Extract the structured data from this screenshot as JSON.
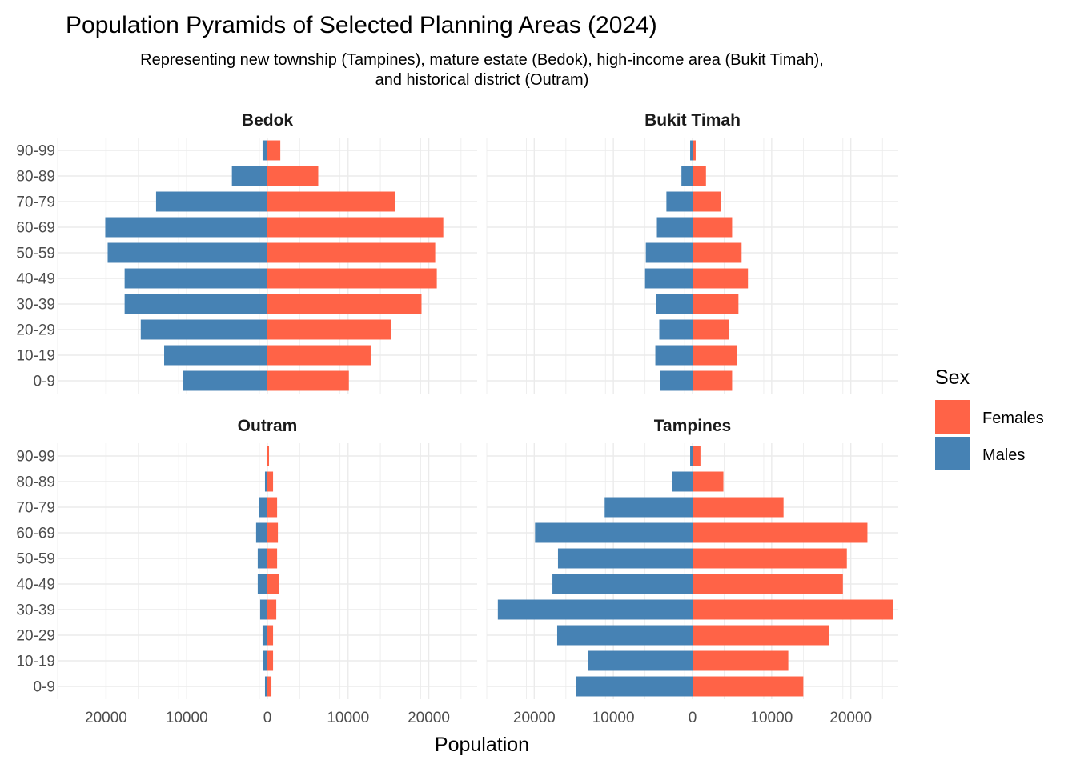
{
  "chart_data": {
    "type": "bar",
    "orientation": "horizontal",
    "layout": "population-pyramid-facets",
    "title": "Population Pyramids of Selected Planning Areas (2024)",
    "subtitle_lines": [
      "Representing new township (Tampines), mature estate (Bedok), high-income area (Bukit Timah),",
      "and historical district (Outram)"
    ],
    "xlabel": "Population",
    "ylabel": "",
    "xlim": [
      -26000,
      26000
    ],
    "x_ticks": [
      -20000,
      -10000,
      0,
      10000,
      20000
    ],
    "x_tick_labels": [
      "20000",
      "10000",
      "0",
      "10000",
      "20000"
    ],
    "categories": [
      "0-9",
      "10-19",
      "20-29",
      "30-39",
      "40-49",
      "50-59",
      "60-69",
      "70-79",
      "80-89",
      "90-99"
    ],
    "grid": true,
    "legend": {
      "title": "Sex",
      "position": "right",
      "items": [
        {
          "label": "Females",
          "color": "#FF6347"
        },
        {
          "label": "Males",
          "color": "#4682B4"
        }
      ]
    },
    "facets": [
      {
        "name": "Bedok",
        "males": [
          10500,
          12800,
          15700,
          17700,
          17700,
          19800,
          20100,
          13800,
          4400,
          600
        ],
        "females": [
          10100,
          12800,
          15300,
          19100,
          21000,
          20800,
          21800,
          15800,
          6300,
          1600
        ]
      },
      {
        "name": "Bukit Timah",
        "males": [
          4100,
          4700,
          4200,
          4600,
          6000,
          5900,
          4500,
          3300,
          1400,
          300
        ],
        "females": [
          5000,
          5600,
          4600,
          5800,
          7000,
          6200,
          5000,
          3600,
          1700,
          400
        ]
      },
      {
        "name": "Outram",
        "males": [
          300,
          500,
          600,
          900,
          1200,
          1200,
          1400,
          1000,
          300,
          100
        ],
        "females": [
          500,
          700,
          700,
          1100,
          1400,
          1200,
          1300,
          1200,
          700,
          200
        ]
      },
      {
        "name": "Tampines",
        "males": [
          14700,
          13200,
          17100,
          24600,
          17700,
          17000,
          19900,
          11100,
          2600,
          300
        ],
        "females": [
          14000,
          12100,
          17200,
          25300,
          19000,
          19500,
          22100,
          11500,
          3900,
          1000
        ]
      }
    ]
  }
}
